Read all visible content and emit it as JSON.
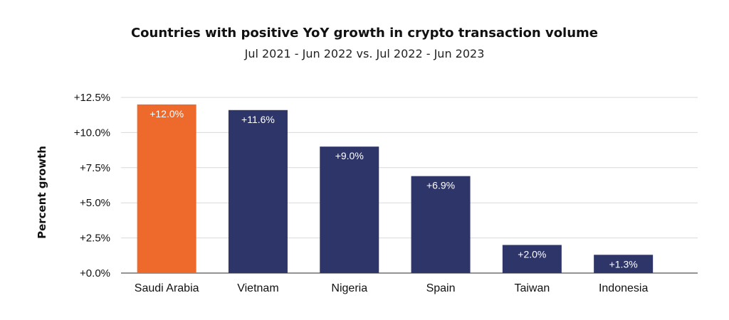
{
  "chart_data": {
    "type": "bar",
    "title": "Countries with positive YoY growth in crypto transaction volume",
    "subtitle": "Jul 2021 - Jun 2022 vs. Jul 2022 - Jun 2023",
    "xlabel": "",
    "ylabel": "Percent growth",
    "ylim": [
      0,
      12.5
    ],
    "yticks": [
      0,
      2.5,
      5,
      7.5,
      10,
      12.5
    ],
    "ytick_labels": [
      "+0.0%",
      "+2.5%",
      "+5.0%",
      "+7.5%",
      "+10.0%",
      "+12.5%"
    ],
    "grid": true,
    "legend": "none",
    "categories": [
      "Saudi Arabia",
      "Vietnam",
      "Nigeria",
      "Spain",
      "Taiwan",
      "Indonesia"
    ],
    "values": [
      12.0,
      11.6,
      9.0,
      6.9,
      2.0,
      1.3
    ],
    "data_labels": [
      "+12.0%",
      "+11.6%",
      "+9.0%",
      "+6.9%",
      "+2.0%",
      "+1.3%"
    ],
    "colors": [
      "#EE6A2C",
      "#2E3569",
      "#2E3569",
      "#2E3569",
      "#2E3569",
      "#2E3569"
    ],
    "grid_color": "#d9d9d9"
  }
}
